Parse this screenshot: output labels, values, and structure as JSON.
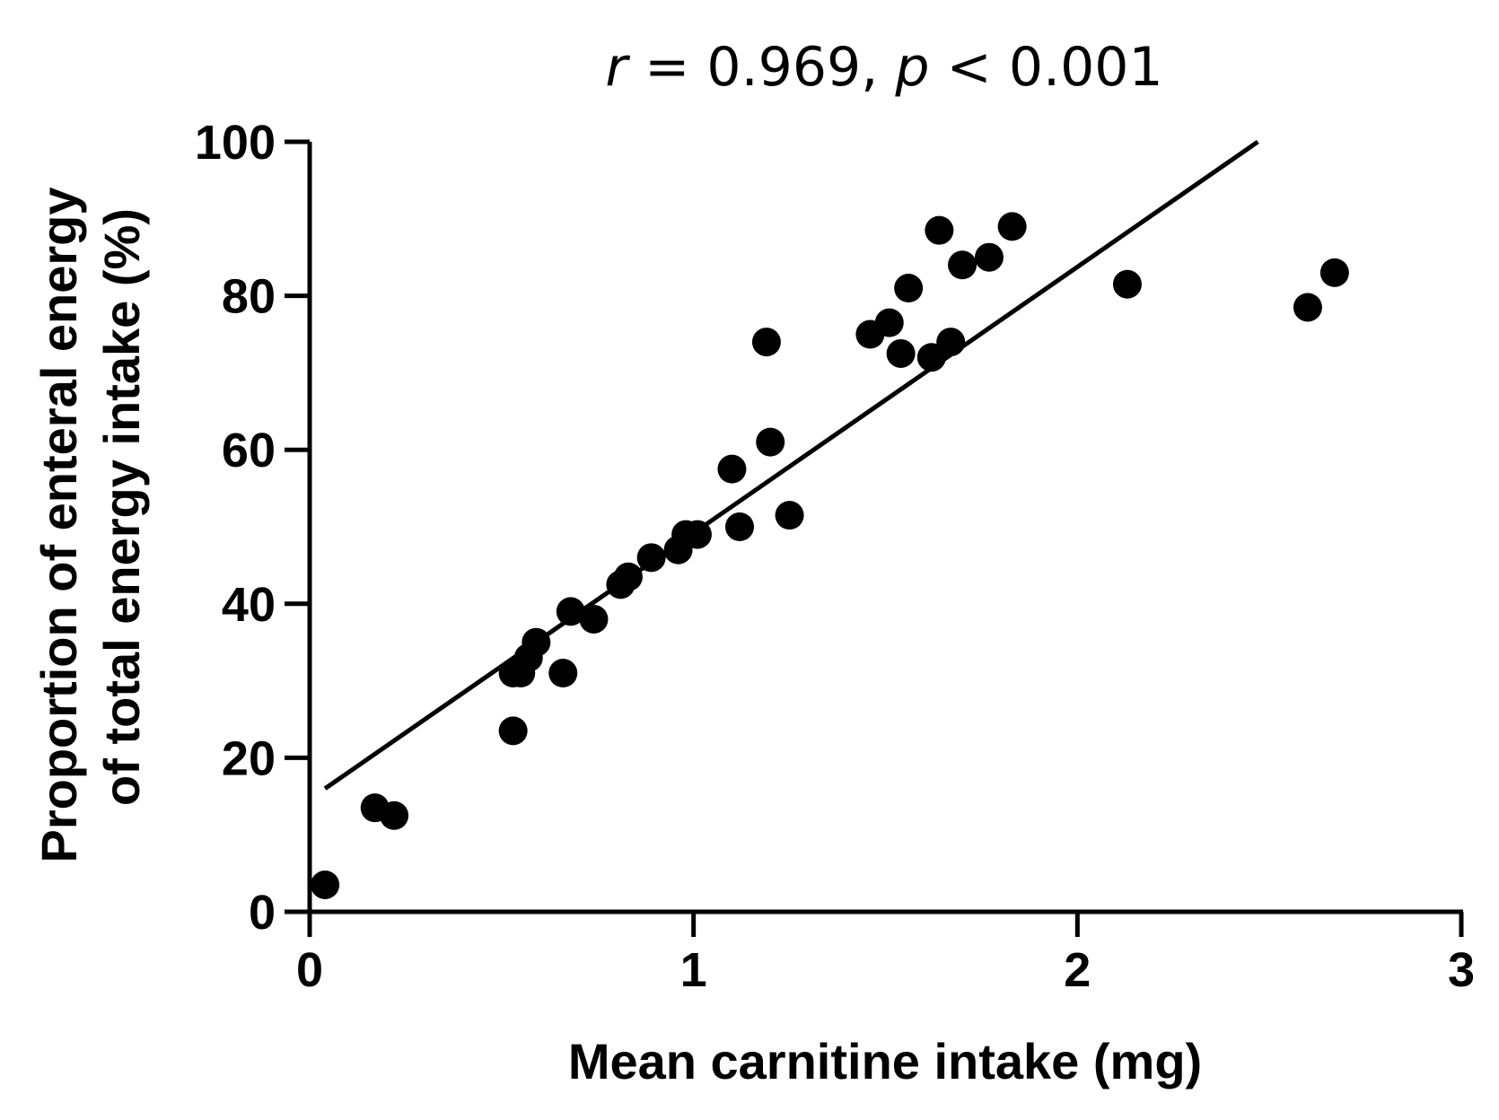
{
  "chart_data": {
    "type": "scatter",
    "title": "",
    "annotation": {
      "r_symbol": "r",
      "r_text": " = 0.969, ",
      "p_symbol": "p",
      "p_text": " < 0.001"
    },
    "xlabel": "Mean carnitine intake (mg)",
    "ylabel_line1": "Proportion of enteral energy",
    "ylabel_line2": "of total energy intake (%)",
    "xlim": [
      0,
      3
    ],
    "ylim": [
      0,
      100
    ],
    "xticks": [
      0,
      1,
      2,
      3
    ],
    "xtick_labels": [
      "0",
      "1",
      "2",
      "3"
    ],
    "yticks": [
      0,
      20,
      40,
      60,
      80,
      100
    ],
    "ytick_labels": [
      "0",
      "20",
      "40",
      "60",
      "80",
      "100"
    ],
    "grid": false,
    "points": [
      {
        "x": 0.04,
        "y": 3.5
      },
      {
        "x": 0.17,
        "y": 13.5
      },
      {
        "x": 0.22,
        "y": 12.5
      },
      {
        "x": 0.53,
        "y": 23.5
      },
      {
        "x": 0.53,
        "y": 31
      },
      {
        "x": 0.55,
        "y": 31
      },
      {
        "x": 0.57,
        "y": 33
      },
      {
        "x": 0.59,
        "y": 35
      },
      {
        "x": 0.66,
        "y": 31
      },
      {
        "x": 0.68,
        "y": 39
      },
      {
        "x": 0.74,
        "y": 38
      },
      {
        "x": 0.81,
        "y": 42.5
      },
      {
        "x": 0.83,
        "y": 43.5
      },
      {
        "x": 0.89,
        "y": 46
      },
      {
        "x": 0.96,
        "y": 47
      },
      {
        "x": 0.98,
        "y": 49
      },
      {
        "x": 1.01,
        "y": 49
      },
      {
        "x": 1.1,
        "y": 57.5
      },
      {
        "x": 1.12,
        "y": 50
      },
      {
        "x": 1.19,
        "y": 74
      },
      {
        "x": 1.2,
        "y": 61
      },
      {
        "x": 1.25,
        "y": 51.5
      },
      {
        "x": 1.46,
        "y": 75
      },
      {
        "x": 1.51,
        "y": 76.5
      },
      {
        "x": 1.54,
        "y": 72.5
      },
      {
        "x": 1.56,
        "y": 81
      },
      {
        "x": 1.62,
        "y": 72
      },
      {
        "x": 1.64,
        "y": 88.5
      },
      {
        "x": 1.67,
        "y": 74
      },
      {
        "x": 1.7,
        "y": 84
      },
      {
        "x": 1.77,
        "y": 85
      },
      {
        "x": 1.83,
        "y": 89
      },
      {
        "x": 2.13,
        "y": 81.5
      },
      {
        "x": 2.6,
        "y": 78.5
      },
      {
        "x": 2.67,
        "y": 83
      }
    ],
    "fit_line": {
      "x": [
        0.04,
        2.47
      ],
      "y": [
        16,
        100
      ]
    }
  }
}
